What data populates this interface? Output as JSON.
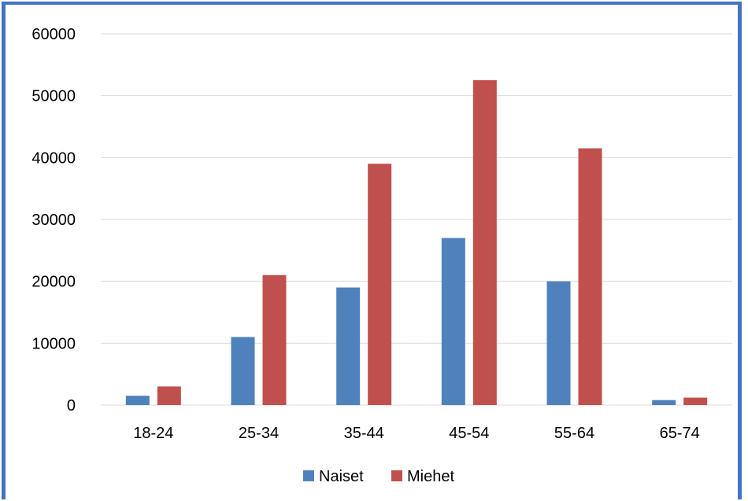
{
  "chart_data": {
    "type": "bar",
    "title": "",
    "xlabel": "",
    "ylabel": "",
    "categories": [
      "18-24",
      "25-34",
      "35-44",
      "45-54",
      "55-64",
      "65-74"
    ],
    "series": [
      {
        "name": "Naiset",
        "color": "#4f81bd",
        "values": [
          1500,
          11000,
          19000,
          27000,
          20000,
          800
        ]
      },
      {
        "name": "Miehet",
        "color": "#c0504d",
        "values": [
          3000,
          21000,
          39000,
          52500,
          41500,
          1200
        ]
      }
    ],
    "ylim": [
      0,
      60000
    ],
    "yticks": [
      "0",
      "10000",
      "20000",
      "30000",
      "40000",
      "50000",
      "60000"
    ],
    "grid": true,
    "legend": "bottom"
  }
}
